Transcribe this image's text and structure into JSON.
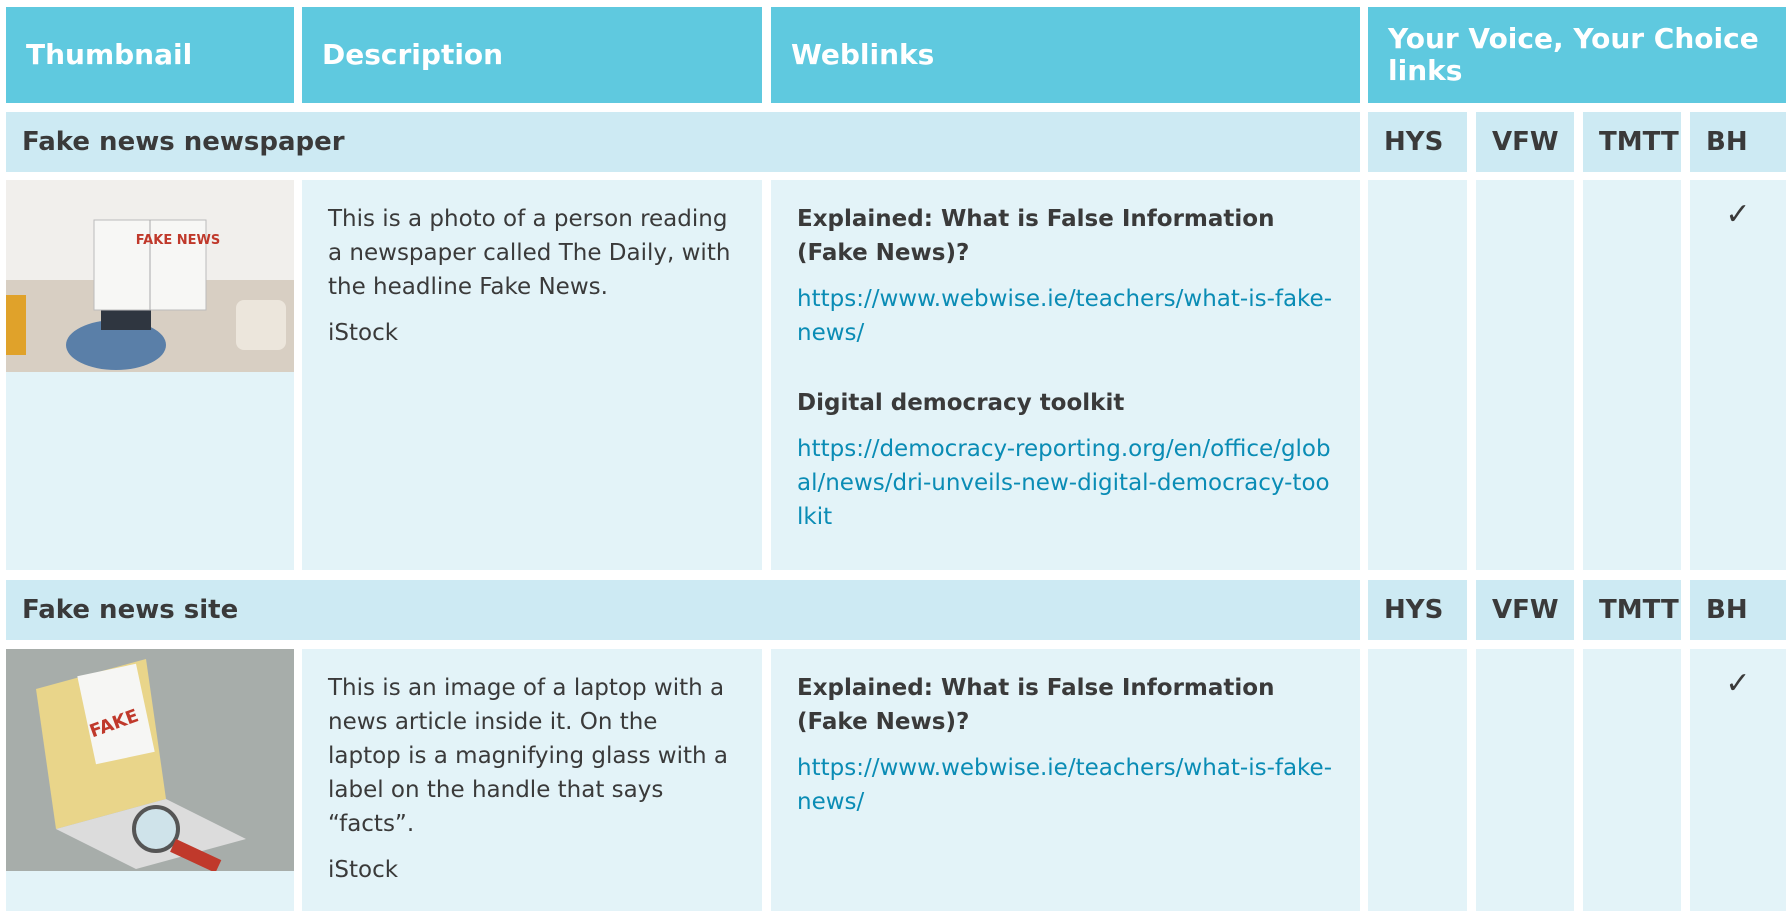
{
  "header": {
    "columns": [
      "Thumbnail",
      "Description",
      "Weblinks",
      "Your Voice, Your Choice links"
    ]
  },
  "check_symbol": "✓",
  "sections": [
    {
      "title": "Fake news newspaper",
      "codes": [
        "HYS",
        "VFW",
        "TMTT",
        "BH"
      ],
      "description": [
        "This is a photo of a person reading a newspaper called The Daily, with the headline Fake News."
      ],
      "credit": "iStock",
      "links": [
        {
          "title": "Explained: What is False Information (Fake News)?",
          "url": "https://www.webwise.ie/teachers/what-is-fake-news/"
        },
        {
          "title": "Digital democracy toolkit",
          "url": "https://democracy-reporting.org/en/office/global/news/dri-unveils-new-digital-democracy-toolkit"
        }
      ],
      "checked": [
        false,
        false,
        false,
        true
      ]
    },
    {
      "title": "Fake news site",
      "codes": [
        "HYS",
        "VFW",
        "TMTT",
        "BH"
      ],
      "description": [
        "This is an image of a laptop with a news article inside it. On the laptop is a magnifying glass with a label on the handle that says “facts”."
      ],
      "credit": "iStock",
      "links": [
        {
          "title": "Explained: What is False Information (Fake News)?",
          "url": "https://www.webwise.ie/teachers/what-is-fake-news/"
        }
      ],
      "checked": [
        false,
        false,
        false,
        true
      ]
    }
  ]
}
